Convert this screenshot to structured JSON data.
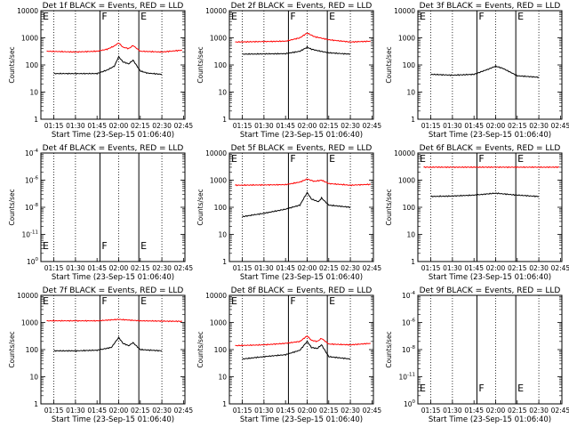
{
  "common": {
    "xlabel": "Start Time (23-Sep-15 01:06:40)",
    "ylabel": "Counts/sec",
    "xticks": [
      "01:15",
      "01:30",
      "01:45",
      "02:00",
      "02:15",
      "02:30",
      "02:45"
    ],
    "ylog_ticks_std": [
      "1",
      "10",
      "100",
      "1000",
      "10000"
    ],
    "ylog_ticks_exp": [
      "10^0",
      "10^-11",
      "10^-8",
      "10^-6",
      "10^-4"
    ],
    "colors": {
      "black_series": "#000000",
      "red_series": "#ff0000"
    },
    "marker_labels": [
      "F",
      "E",
      "E"
    ]
  },
  "chart_data": [
    {
      "title": "Det 1f BLACK = Events, RED = LLD",
      "type": "line",
      "yscale": "log",
      "series": [
        {
          "name": "Events",
          "color": "#000000",
          "x": [
            "01:15",
            "01:30",
            "01:45",
            "01:52",
            "01:57",
            "02:00",
            "02:03",
            "02:07",
            "02:10",
            "02:15",
            "02:20",
            "02:30"
          ],
          "y": [
            48,
            48,
            48,
            65,
            90,
            200,
            130,
            110,
            150,
            60,
            50,
            45
          ]
        },
        {
          "name": "LLD",
          "color": "#ff0000",
          "x": [
            "01:10",
            "01:30",
            "01:45",
            "01:52",
            "01:57",
            "02:00",
            "02:03",
            "02:07",
            "02:10",
            "02:15",
            "02:30",
            "02:44"
          ],
          "y": [
            320,
            300,
            320,
            380,
            500,
            650,
            450,
            400,
            520,
            320,
            300,
            350
          ]
        }
      ],
      "markers": [
        {
          "time": "01:47",
          "label": "F"
        },
        {
          "time": "02:14",
          "label": "E"
        }
      ]
    },
    {
      "title": "Det 2f BLACK = Events, RED = LLD",
      "type": "line",
      "yscale": "log",
      "series": [
        {
          "name": "Events",
          "color": "#000000",
          "x": [
            "01:15",
            "01:45",
            "01:55",
            "02:00",
            "02:03",
            "02:07",
            "02:15",
            "02:30"
          ],
          "y": [
            250,
            260,
            320,
            450,
            380,
            340,
            280,
            250
          ]
        },
        {
          "name": "LLD",
          "color": "#ff0000",
          "x": [
            "01:10",
            "01:45",
            "01:55",
            "02:00",
            "02:05",
            "02:15",
            "02:30",
            "02:44"
          ],
          "y": [
            700,
            750,
            1000,
            1500,
            1100,
            850,
            700,
            750
          ]
        }
      ],
      "markers": [
        {
          "time": "01:47",
          "label": "F"
        },
        {
          "time": "02:14",
          "label": "E"
        }
      ]
    },
    {
      "title": "Det 3f BLACK = Events, RED = LLD",
      "type": "line",
      "yscale": "log",
      "series": [
        {
          "name": "Events",
          "color": "#000000",
          "x": [
            "01:15",
            "01:30",
            "01:45",
            "01:55",
            "02:00",
            "02:05",
            "02:15",
            "02:30"
          ],
          "y": [
            45,
            42,
            45,
            70,
            90,
            75,
            40,
            35
          ]
        }
      ],
      "markers": [
        {
          "time": "01:47",
          "label": "F"
        },
        {
          "time": "02:14",
          "label": "E"
        }
      ]
    },
    {
      "title": "Det 4f BLACK = Events, RED = LLD",
      "type": "line",
      "yscale": "log-exp",
      "series": [],
      "markers": [
        {
          "time": "01:47",
          "label": "F"
        },
        {
          "time": "02:14",
          "label": "E"
        }
      ]
    },
    {
      "title": "Det 5f BLACK = Events, RED = LLD",
      "type": "line",
      "yscale": "log",
      "series": [
        {
          "name": "Events",
          "color": "#000000",
          "x": [
            "01:15",
            "01:30",
            "01:45",
            "01:55",
            "02:00",
            "02:03",
            "02:08",
            "02:10",
            "02:15",
            "02:30"
          ],
          "y": [
            45,
            60,
            85,
            120,
            350,
            200,
            160,
            220,
            120,
            100
          ]
        },
        {
          "name": "LLD",
          "color": "#ff0000",
          "x": [
            "01:10",
            "01:45",
            "01:55",
            "02:00",
            "02:05",
            "02:10",
            "02:15",
            "02:30",
            "02:44"
          ],
          "y": [
            650,
            680,
            850,
            1100,
            900,
            1000,
            750,
            650,
            700
          ]
        }
      ],
      "markers": [
        {
          "time": "01:47",
          "label": "F"
        },
        {
          "time": "02:14",
          "label": "E"
        }
      ]
    },
    {
      "title": "Det 6f BLACK = Events, RED = LLD",
      "type": "line",
      "yscale": "log",
      "series": [
        {
          "name": "Events",
          "color": "#000000",
          "x": [
            "01:15",
            "01:30",
            "01:45",
            "02:00",
            "02:15",
            "02:30"
          ],
          "y": [
            250,
            260,
            280,
            330,
            280,
            250
          ]
        },
        {
          "name": "LLD",
          "color": "#ff0000",
          "x": [
            "01:10",
            "01:45",
            "02:15",
            "02:44"
          ],
          "y": [
            3000,
            3000,
            3000,
            3000
          ]
        }
      ],
      "markers": [
        {
          "time": "01:47",
          "label": "F"
        },
        {
          "time": "02:14",
          "label": "E"
        }
      ]
    },
    {
      "title": "Det 7f BLACK = Events, RED = LLD",
      "type": "line",
      "yscale": "log",
      "series": [
        {
          "name": "Events",
          "color": "#000000",
          "x": [
            "01:15",
            "01:30",
            "01:45",
            "01:55",
            "02:00",
            "02:03",
            "02:07",
            "02:10",
            "02:15",
            "02:30"
          ],
          "y": [
            90,
            90,
            95,
            120,
            280,
            170,
            140,
            180,
            100,
            90
          ]
        },
        {
          "name": "LLD",
          "color": "#ff0000",
          "x": [
            "01:10",
            "01:45",
            "02:00",
            "02:15",
            "02:44"
          ],
          "y": [
            1150,
            1150,
            1300,
            1150,
            1100
          ]
        }
      ],
      "markers": [
        {
          "time": "01:47",
          "label": "F"
        },
        {
          "time": "02:14",
          "label": "E"
        }
      ]
    },
    {
      "title": "Det 8f BLACK = Events, RED = LLD",
      "type": "line",
      "yscale": "log",
      "series": [
        {
          "name": "Events",
          "color": "#000000",
          "x": [
            "01:15",
            "01:30",
            "01:45",
            "01:55",
            "02:00",
            "02:03",
            "02:07",
            "02:10",
            "02:15",
            "02:30"
          ],
          "y": [
            45,
            55,
            65,
            95,
            200,
            120,
            110,
            150,
            55,
            45
          ]
        },
        {
          "name": "LLD",
          "color": "#ff0000",
          "x": [
            "01:10",
            "01:30",
            "01:45",
            "01:55",
            "02:00",
            "02:03",
            "02:07",
            "02:10",
            "02:15",
            "02:30",
            "02:44"
          ],
          "y": [
            140,
            150,
            170,
            200,
            320,
            220,
            200,
            260,
            160,
            150,
            170
          ]
        }
      ],
      "markers": [
        {
          "time": "01:47",
          "label": "F"
        },
        {
          "time": "02:14",
          "label": "E"
        }
      ]
    },
    {
      "title": "Det 9f BLACK = Events, RED = LLD",
      "type": "line",
      "yscale": "log-exp",
      "series": [],
      "markers": [
        {
          "time": "01:47",
          "label": "F"
        },
        {
          "time": "02:14",
          "label": "E"
        }
      ]
    }
  ]
}
